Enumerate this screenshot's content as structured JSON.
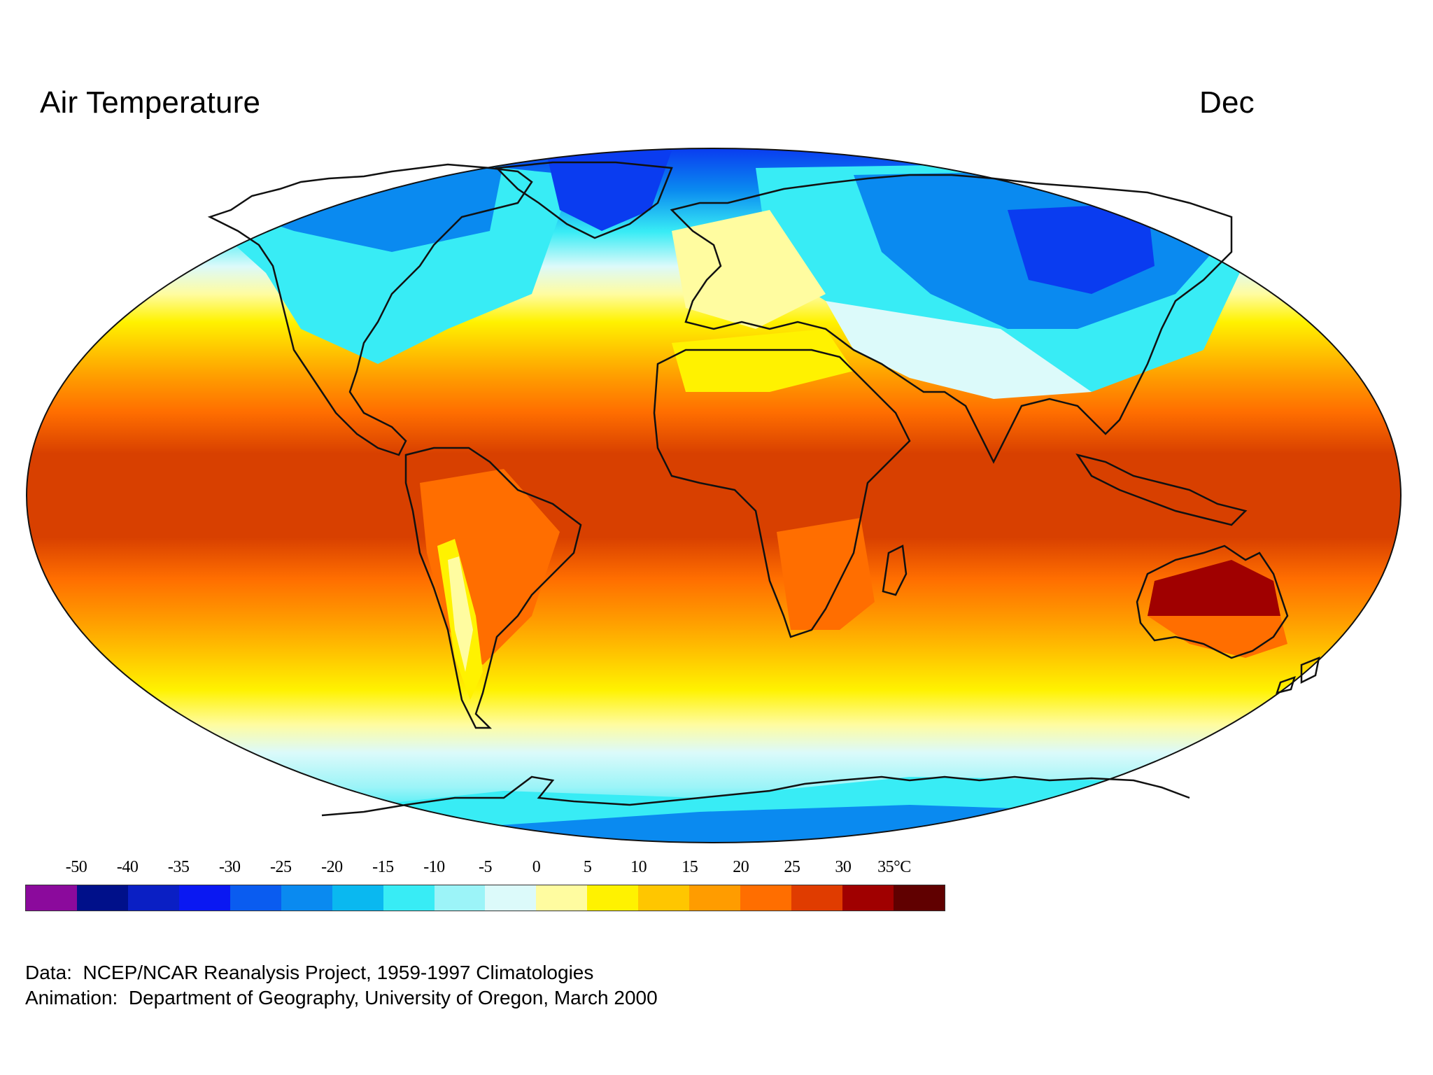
{
  "header": {
    "title": "Air Temperature",
    "month": "Dec"
  },
  "legend": {
    "ticks": [
      "-50",
      "-40",
      "-35",
      "-30",
      "-25",
      "-20",
      "-15",
      "-10",
      "-5",
      "0",
      "5",
      "10",
      "15",
      "20",
      "25",
      "30",
      "35°C"
    ],
    "colors": [
      "#8b0a9c",
      "#00108a",
      "#0a1fc4",
      "#0a18f2",
      "#0a5cf0",
      "#0a8af0",
      "#0ab8f0",
      "#38ecf5",
      "#9cf4f8",
      "#dcfafa",
      "#fffca0",
      "#fff200",
      "#ffc600",
      "#ff9c00",
      "#ff6e00",
      "#e03c00",
      "#a00000",
      "#600000"
    ]
  },
  "credits": {
    "data_line": "Data:  NCEP/NCAR Reanalysis Project, 1959-1997 Climatologies",
    "animation_line": "Animation:  Department of Geography, University of Oregon, March 2000"
  },
  "map": {
    "projection": "Robinson",
    "variable": "air temperature",
    "units": "°C",
    "colors": {
      "polar_deep": "#0a3cf0",
      "polar": "#0a8af0",
      "cold": "#38ecf5",
      "cool": "#dcfafa",
      "mild": "#fffca0",
      "warm": "#fff200",
      "warmer": "#ffc600",
      "hot": "#ff9c00",
      "hotter": "#ff6e00",
      "tropical": "#d84000",
      "extreme": "#a00000",
      "coastline": "#111111"
    }
  }
}
